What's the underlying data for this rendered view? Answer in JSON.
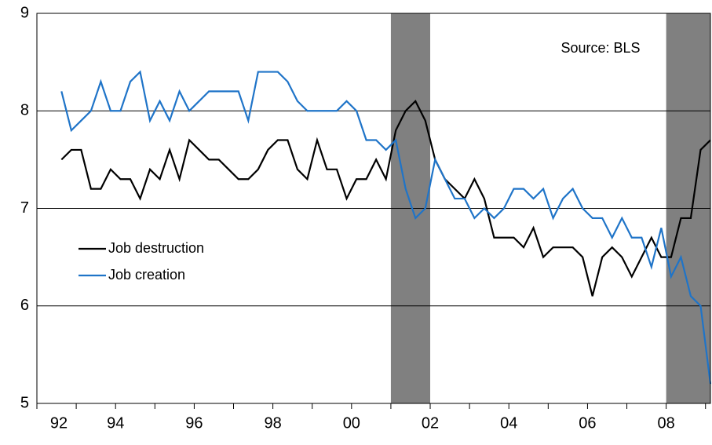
{
  "chart_data": {
    "type": "line",
    "annotation": "Source: BLS",
    "x": [
      1992.625,
      1992.875,
      1993.125,
      1993.375,
      1993.625,
      1993.875,
      1994.125,
      1994.375,
      1994.625,
      1994.875,
      1995.125,
      1995.375,
      1995.625,
      1995.875,
      1996.125,
      1996.375,
      1996.625,
      1996.875,
      1997.125,
      1997.375,
      1997.625,
      1997.875,
      1998.125,
      1998.375,
      1998.625,
      1998.875,
      1999.125,
      1999.375,
      1999.625,
      1999.875,
      2000.125,
      2000.375,
      2000.625,
      2000.875,
      2001.125,
      2001.375,
      2001.625,
      2001.875,
      2002.125,
      2002.375,
      2002.625,
      2002.875,
      2003.125,
      2003.375,
      2003.625,
      2003.875,
      2004.125,
      2004.375,
      2004.625,
      2004.875,
      2005.125,
      2005.375,
      2005.625,
      2005.875,
      2006.125,
      2006.375,
      2006.625,
      2006.875,
      2007.125,
      2007.375,
      2007.625,
      2007.875,
      2008.125,
      2008.375,
      2008.625,
      2008.875,
      2009.125
    ],
    "series": [
      {
        "name": "Job destruction",
        "color": "#000000",
        "values": [
          7.5,
          7.6,
          7.6,
          7.2,
          7.2,
          7.4,
          7.3,
          7.3,
          7.1,
          7.4,
          7.3,
          7.6,
          7.3,
          7.7,
          7.6,
          7.5,
          7.5,
          7.4,
          7.3,
          7.3,
          7.4,
          7.6,
          7.7,
          7.7,
          7.4,
          7.3,
          7.7,
          7.4,
          7.4,
          7.1,
          7.3,
          7.3,
          7.5,
          7.3,
          7.8,
          8.0,
          8.1,
          7.9,
          7.5,
          7.3,
          7.2,
          7.1,
          7.3,
          7.1,
          6.7,
          6.7,
          6.7,
          6.6,
          6.8,
          6.5,
          6.6,
          6.6,
          6.6,
          6.5,
          6.1,
          6.5,
          6.6,
          6.5,
          6.3,
          6.5,
          6.7,
          6.5,
          6.5,
          6.9,
          6.9,
          7.6,
          7.7
        ]
      },
      {
        "name": "Job creation",
        "color": "#1f74c8",
        "values": [
          8.2,
          7.8,
          7.9,
          8.0,
          8.3,
          8.0,
          8.0,
          8.3,
          8.4,
          7.9,
          8.1,
          7.9,
          8.2,
          8.0,
          8.1,
          8.2,
          8.2,
          8.2,
          8.2,
          7.9,
          8.4,
          8.4,
          8.4,
          8.3,
          8.1,
          8.0,
          8.0,
          8.0,
          8.0,
          8.1,
          8.0,
          7.7,
          7.7,
          7.6,
          7.7,
          7.2,
          6.9,
          7.0,
          7.5,
          7.3,
          7.1,
          7.1,
          6.9,
          7.0,
          6.9,
          7.0,
          7.2,
          7.2,
          7.1,
          7.2,
          6.9,
          7.1,
          7.2,
          7.0,
          6.9,
          6.9,
          6.7,
          6.9,
          6.7,
          6.7,
          6.4,
          6.8,
          6.3,
          6.5,
          6.1,
          6.0,
          5.2
        ]
      }
    ],
    "recessions": [
      [
        2001,
        2002
      ],
      [
        2008,
        2009.125
      ]
    ],
    "recession_color": "#808080",
    "xlim": [
      1992,
      2009.125
    ],
    "xticks": [
      {
        "value": 1992,
        "label": "92"
      },
      {
        "value": 1994,
        "label": "94"
      },
      {
        "value": 1996,
        "label": "96"
      },
      {
        "value": 1998,
        "label": "98"
      },
      {
        "value": 2000,
        "label": "00"
      },
      {
        "value": 2002,
        "label": "02"
      },
      {
        "value": 2004,
        "label": "04"
      },
      {
        "value": 2006,
        "label": "06"
      },
      {
        "value": 2008,
        "label": "08"
      }
    ],
    "x_minor_ticks": [
      1993,
      1995,
      1997,
      1999,
      2001,
      2003,
      2005,
      2007,
      2009
    ],
    "ylim": [
      5,
      9
    ],
    "yticks": [
      5,
      6,
      7,
      8,
      9
    ],
    "grid": true,
    "legend": "left"
  }
}
